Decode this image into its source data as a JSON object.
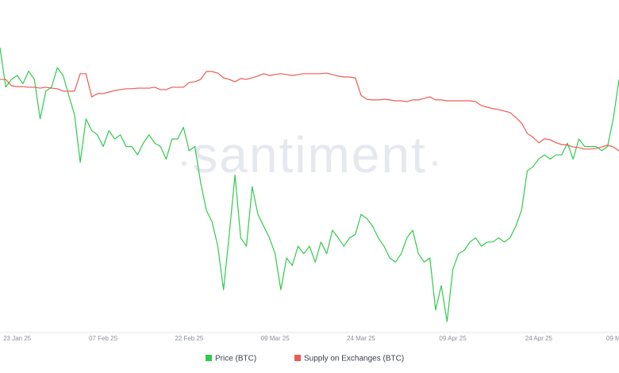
{
  "chart_data": {
    "type": "line",
    "watermark": "santiment",
    "categories": [
      null,
      null,
      null,
      "23 Jan 25",
      null,
      null,
      null,
      null,
      null,
      null,
      null,
      null,
      null,
      null,
      null,
      null,
      null,
      null,
      "07 Feb 25",
      null,
      null,
      null,
      null,
      null,
      null,
      null,
      null,
      null,
      null,
      null,
      null,
      null,
      null,
      "22 Feb 25",
      null,
      null,
      null,
      null,
      null,
      null,
      null,
      null,
      null,
      null,
      null,
      null,
      null,
      null,
      "09 Mar 25",
      null,
      null,
      null,
      null,
      null,
      null,
      null,
      null,
      null,
      null,
      null,
      null,
      null,
      null,
      "24 Mar 25",
      null,
      null,
      null,
      null,
      null,
      null,
      null,
      null,
      null,
      null,
      null,
      null,
      null,
      null,
      null,
      "09 Apr 25",
      null,
      null,
      null,
      null,
      null,
      null,
      null,
      null,
      null,
      null,
      null,
      null,
      null,
      null,
      "24 Apr 25",
      null,
      null,
      null,
      null,
      null,
      null,
      null,
      null,
      null,
      null,
      null,
      null,
      "09 M",
      null
    ],
    "ylim": [
      74000,
      110000
    ],
    "y2lim": [
      0,
      100
    ],
    "series": [
      {
        "name": "Price (BTC)",
        "color": "#2fcb4c",
        "values": [
          108100,
          103400,
          104300,
          104800,
          103800,
          105300,
          104300,
          99600,
          102900,
          103400,
          105700,
          104800,
          102400,
          100100,
          94400,
          99600,
          98200,
          97700,
          96300,
          98200,
          97200,
          97700,
          96300,
          96300,
          95300,
          96700,
          97700,
          96700,
          96300,
          94800,
          97200,
          97200,
          98600,
          95800,
          96300,
          92000,
          88700,
          87300,
          84400,
          79200,
          85800,
          92900,
          85400,
          84400,
          91500,
          88200,
          86800,
          85400,
          83500,
          79200,
          83000,
          82100,
          84400,
          83500,
          84400,
          82500,
          84900,
          83500,
          86300,
          85400,
          84400,
          85400,
          85800,
          88200,
          87700,
          86800,
          85400,
          84400,
          83000,
          82500,
          83500,
          85400,
          86300,
          83500,
          82500,
          83000,
          76800,
          79700,
          75400,
          81600,
          83500,
          83900,
          84900,
          85400,
          84400,
          84900,
          84900,
          85400,
          84900,
          85400,
          86800,
          88700,
          93400,
          93900,
          94800,
          95300,
          94800,
          95300,
          95300,
          96700,
          94800,
          97200,
          96300,
          96300,
          96300,
          95800,
          96300,
          99600,
          104300
        ]
      },
      {
        "name": "Supply on Exchanges (BTC)",
        "color": "#ec5b52",
        "axis": "y2",
        "values": [
          84.2,
          84.2,
          82.1,
          81.8,
          81.8,
          81.6,
          81.6,
          81.3,
          81.6,
          81.3,
          81.1,
          80.3,
          80.3,
          80.3,
          86.1,
          86.1,
          78.4,
          79.5,
          79.5,
          80.0,
          80.5,
          80.8,
          81.1,
          81.1,
          81.3,
          81.3,
          81.3,
          81.6,
          80.8,
          80.8,
          81.6,
          81.6,
          81.6,
          83.2,
          83.4,
          84.2,
          86.8,
          86.8,
          86.3,
          84.7,
          84.2,
          83.4,
          84.5,
          84.2,
          84.7,
          85.3,
          86.1,
          85.5,
          85.8,
          86.1,
          85.8,
          85.5,
          85.8,
          86.1,
          86.1,
          86.1,
          86.1,
          86.3,
          85.8,
          85.3,
          85.0,
          85.0,
          84.7,
          78.9,
          77.6,
          77.4,
          77.4,
          77.6,
          77.4,
          77.1,
          77.1,
          76.8,
          77.4,
          77.4,
          77.9,
          78.4,
          77.4,
          77.4,
          77.1,
          77.1,
          77.1,
          77.1,
          77.1,
          76.8,
          75.5,
          75.0,
          74.5,
          74.2,
          73.7,
          73.2,
          71.6,
          69.7,
          66.3,
          65.0,
          63.2,
          64.5,
          64.2,
          63.2,
          62.6,
          62.4,
          61.8,
          61.6,
          61.1,
          61.1,
          61.3,
          61.8,
          62.4,
          61.8,
          60.5
        ]
      }
    ]
  }
}
